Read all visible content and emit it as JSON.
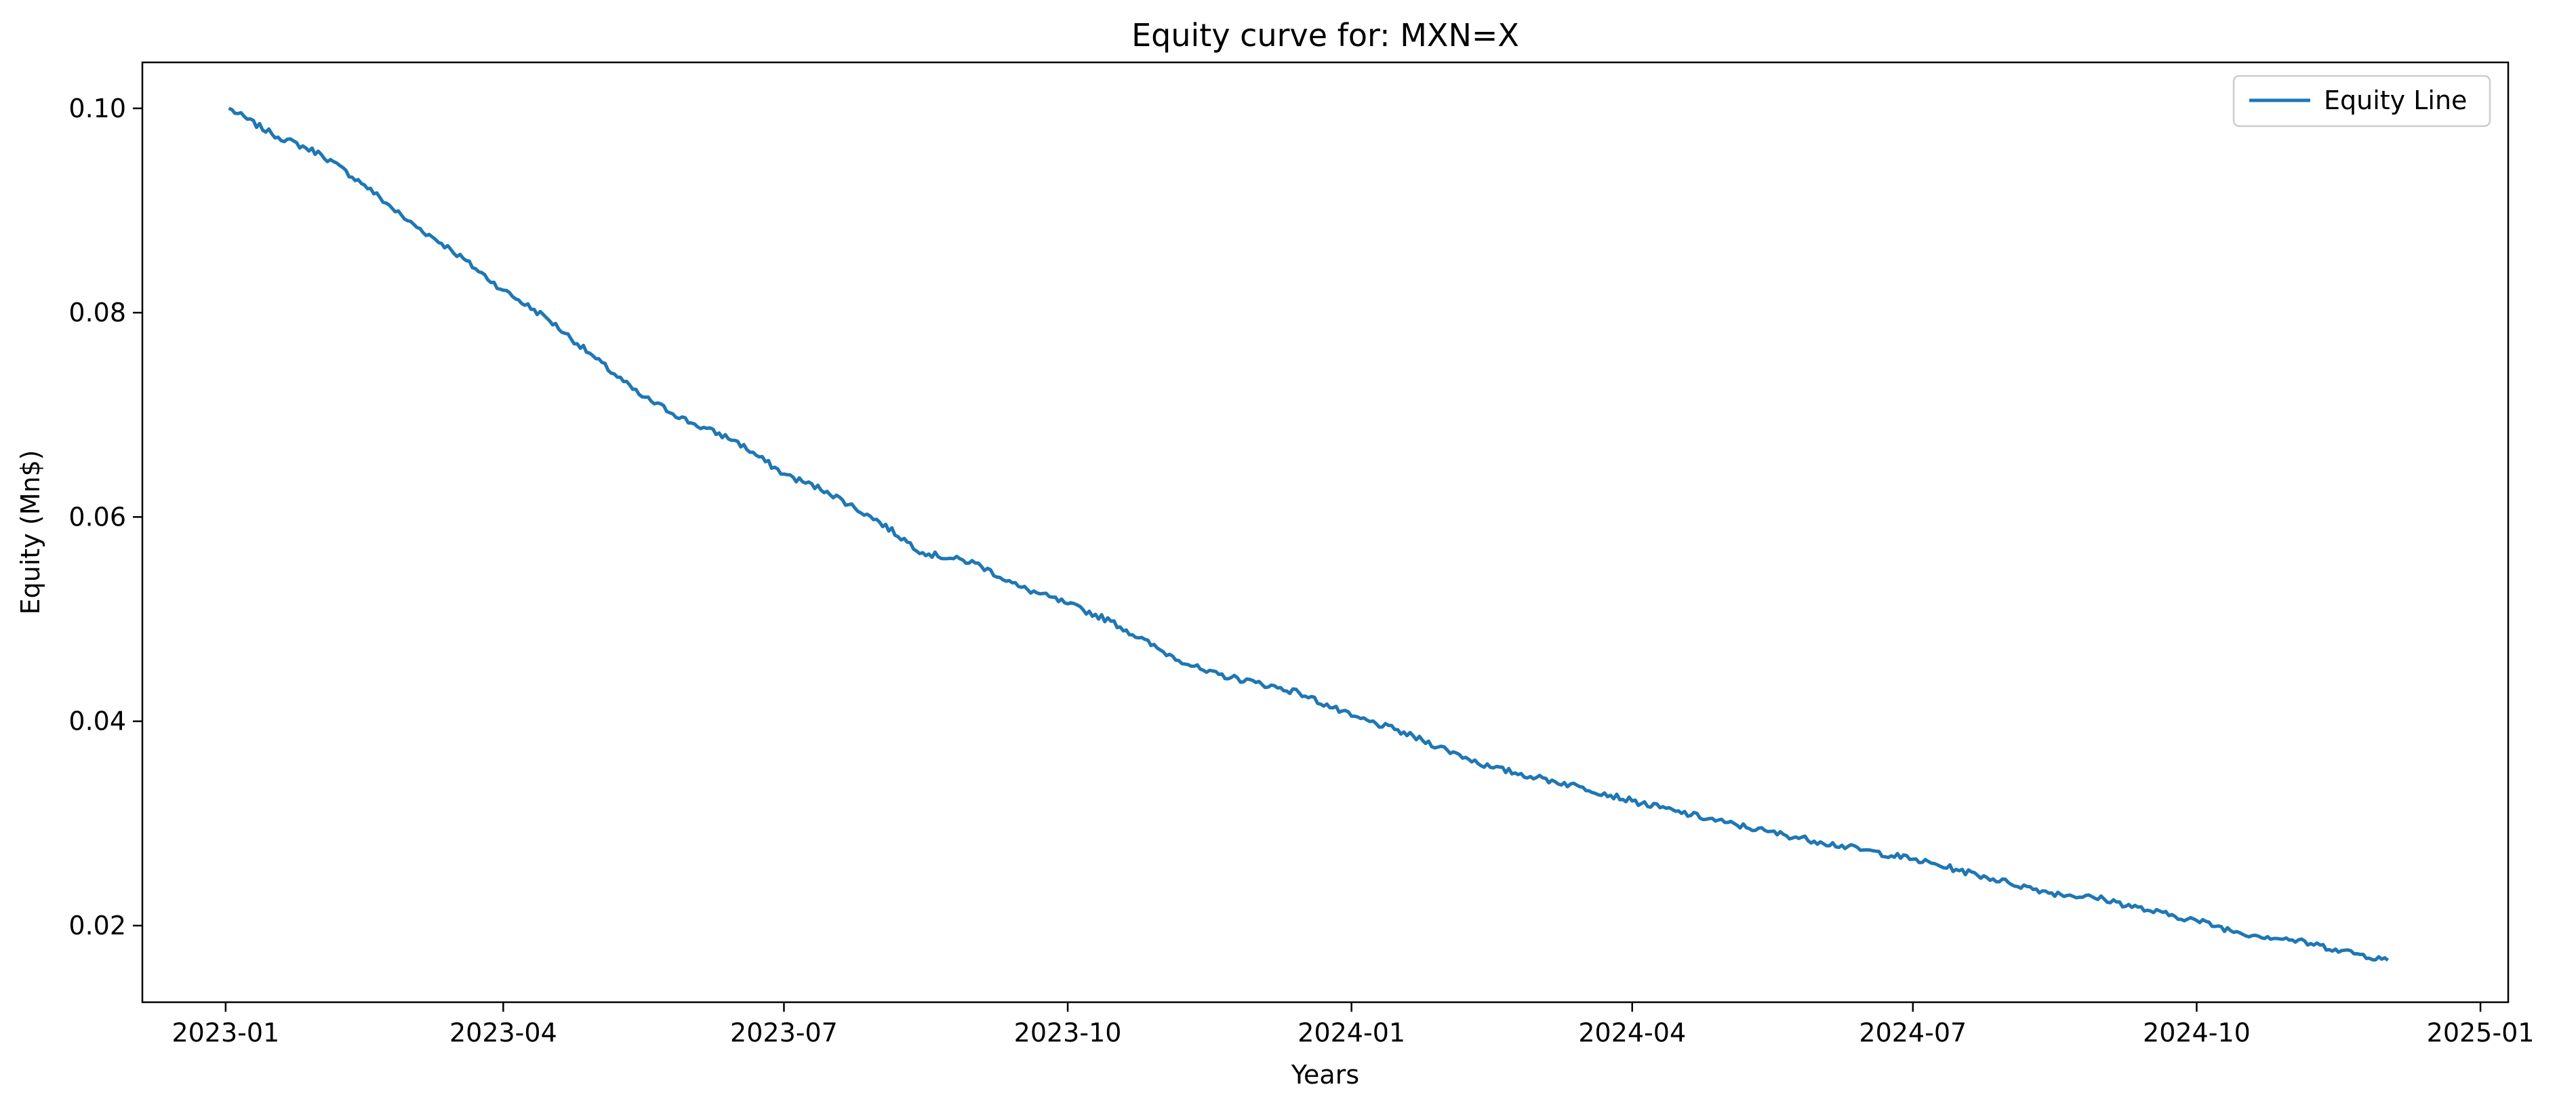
{
  "chart_data": {
    "type": "line",
    "title": "Equity curve for: MXN=X",
    "xlabel": "Years",
    "ylabel": "Equity (Mn$)",
    "x_ticks": [
      "2023-01",
      "2023-04",
      "2023-07",
      "2023-10",
      "2024-01",
      "2024-04",
      "2024-07",
      "2024-10",
      "2025-01"
    ],
    "y_ticks": [
      "0.02",
      "0.04",
      "0.06",
      "0.08",
      "0.10"
    ],
    "xlim": [
      "2022-12-05",
      "2025-01-10"
    ],
    "ylim": [
      0.0125,
      0.1045
    ],
    "grid": false,
    "legend": {
      "position": "top-right",
      "entries": [
        "Equity Line"
      ]
    },
    "colors": {
      "series": "#1f77b4",
      "axes": "#000000",
      "background": "#ffffff"
    },
    "series": [
      {
        "name": "Equity Line",
        "x": [
          "2023-01-02",
          "2023-01-16",
          "2023-02-01",
          "2023-02-15",
          "2023-03-01",
          "2023-03-15",
          "2023-04-01",
          "2023-04-15",
          "2023-05-01",
          "2023-05-15",
          "2023-06-01",
          "2023-06-15",
          "2023-07-01",
          "2023-07-15",
          "2023-08-01",
          "2023-08-15",
          "2023-09-01",
          "2023-09-15",
          "2023-10-01",
          "2023-10-15",
          "2023-11-01",
          "2023-11-15",
          "2023-12-01",
          "2023-12-15",
          "2024-01-01",
          "2024-01-15",
          "2024-02-01",
          "2024-02-15",
          "2024-03-01",
          "2024-03-15",
          "2024-04-01",
          "2024-04-15",
          "2024-05-01",
          "2024-05-15",
          "2024-06-01",
          "2024-06-15",
          "2024-07-01",
          "2024-07-15",
          "2024-08-01",
          "2024-08-15",
          "2024-09-01",
          "2024-09-15",
          "2024-10-01",
          "2024-10-15",
          "2024-11-01",
          "2024-11-15",
          "2024-12-02"
        ],
        "y": [
          0.1,
          0.0975,
          0.0955,
          0.0925,
          0.089,
          0.0862,
          0.0822,
          0.0795,
          0.0755,
          0.072,
          0.0692,
          0.0675,
          0.0642,
          0.0625,
          0.0595,
          0.0565,
          0.0555,
          0.0532,
          0.0515,
          0.0498,
          0.0468,
          0.0448,
          0.0438,
          0.0428,
          0.0405,
          0.0392,
          0.0372,
          0.0355,
          0.0345,
          0.0336,
          0.0322,
          0.0312,
          0.0301,
          0.0292,
          0.0282,
          0.0274,
          0.0265,
          0.0255,
          0.0242,
          0.0232,
          0.0226,
          0.0215,
          0.0205,
          0.0193,
          0.0186,
          0.0177,
          0.0166
        ]
      }
    ]
  }
}
